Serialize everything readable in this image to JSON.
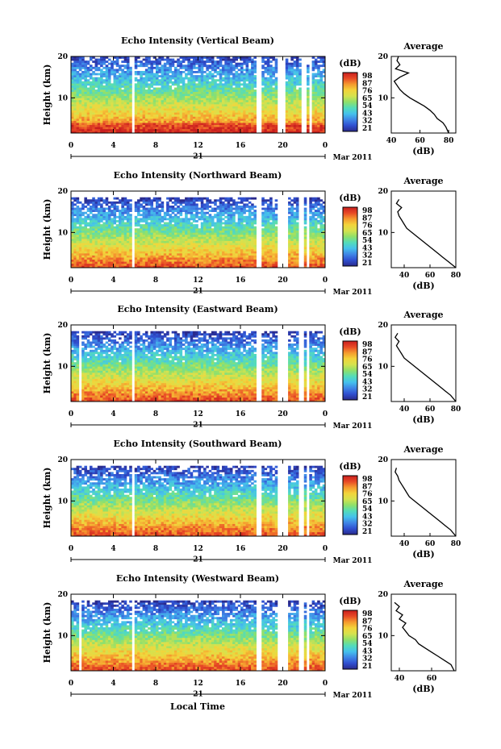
{
  "xlabel": "Local Time",
  "date_label": "Mar 2011",
  "day_label": "21",
  "colors": {
    "scale": [
      "#2a2a8c",
      "#2f4fd0",
      "#3f86e6",
      "#45c1ec",
      "#53dcb9",
      "#8fe06a",
      "#d5e24e",
      "#f3d43a",
      "#f59a2e",
      "#e84a26",
      "#c81e1e"
    ],
    "line": "#000000"
  },
  "chart_data": [
    {
      "type": "heatmap",
      "title": "Echo Intensity (Vertical Beam)",
      "ylabel": "Height (km)",
      "x_ticks": [
        "0",
        "4",
        "8",
        "12",
        "16",
        "20",
        "0"
      ],
      "y_ticks": [
        "20",
        "10"
      ],
      "xlim": [
        0,
        24
      ],
      "ylim": [
        1.5,
        20
      ],
      "top_km": 20,
      "gaps": [
        [
          5.8,
          6.1
        ],
        [
          17.6,
          18.0
        ],
        [
          19.6,
          20.2
        ],
        [
          21.8,
          22.2
        ],
        [
          22.5,
          22.8
        ]
      ],
      "colorbar": {
        "title": "(dB)",
        "ticks": [
          "98",
          "87",
          "76",
          "65",
          "54",
          "43",
          "32",
          "21"
        ]
      },
      "profile": {
        "title": "Average",
        "xlabel": "(dB)",
        "x_ticks": [
          "40",
          "60",
          "80"
        ],
        "xlim": [
          40,
          85
        ],
        "y_ticks": [
          "20",
          "10"
        ],
        "height": [
          1.5,
          3,
          4,
          5,
          6,
          7,
          8,
          9,
          10,
          11,
          12,
          13,
          14,
          15,
          16,
          17,
          18,
          19,
          20
        ],
        "value": [
          80,
          78,
          76,
          72,
          70,
          67,
          63,
          58,
          53,
          49,
          46,
          44,
          42,
          46,
          52,
          43,
          46,
          44,
          45
        ]
      }
    },
    {
      "type": "heatmap",
      "title": "Echo Intensity (Northward Beam)",
      "ylabel": "Height (km)",
      "x_ticks": [
        "0",
        "4",
        "8",
        "12",
        "16",
        "20",
        "0"
      ],
      "y_ticks": [
        "20",
        "10"
      ],
      "xlim": [
        0,
        24
      ],
      "ylim": [
        1.5,
        20
      ],
      "top_km": 18,
      "gaps": [
        [
          5.8,
          6.1
        ],
        [
          17.6,
          18.0
        ],
        [
          19.6,
          20.4
        ],
        [
          21.6,
          22.0
        ],
        [
          22.3,
          22.6
        ]
      ],
      "colorbar": {
        "title": "(dB)",
        "ticks": [
          "98",
          "87",
          "76",
          "65",
          "54",
          "43",
          "32",
          "21"
        ]
      },
      "profile": {
        "title": "Average",
        "xlabel": "(dB)",
        "x_ticks": [
          "40",
          "60",
          "80"
        ],
        "xlim": [
          30,
          80
        ],
        "y_ticks": [
          "20",
          "10"
        ],
        "height": [
          1.5,
          3,
          4,
          5,
          6,
          7,
          8,
          9,
          10,
          11,
          12,
          13,
          14,
          15,
          16,
          17,
          18
        ],
        "value": [
          80,
          74,
          70,
          66,
          62,
          58,
          54,
          50,
          46,
          42,
          40,
          38,
          36,
          35,
          38,
          34,
          36
        ]
      }
    },
    {
      "type": "heatmap",
      "title": "Echo Intensity (Eastward Beam)",
      "ylabel": "Height (km)",
      "x_ticks": [
        "0",
        "4",
        "8",
        "12",
        "16",
        "20",
        "0"
      ],
      "y_ticks": [
        "20",
        "10"
      ],
      "xlim": [
        0,
        24
      ],
      "ylim": [
        1.5,
        20
      ],
      "top_km": 18,
      "gaps": [
        [
          0.8,
          1.0
        ],
        [
          5.8,
          6.1
        ],
        [
          17.6,
          18.0
        ],
        [
          19.6,
          20.4
        ],
        [
          21.6,
          22.0
        ],
        [
          22.3,
          22.6
        ]
      ],
      "colorbar": {
        "title": "(dB)",
        "ticks": [
          "98",
          "87",
          "76",
          "65",
          "54",
          "43",
          "32",
          "21"
        ]
      },
      "profile": {
        "title": "Average",
        "xlabel": "(dB)",
        "x_ticks": [
          "40",
          "60",
          "80"
        ],
        "xlim": [
          30,
          80
        ],
        "y_ticks": [
          "20",
          "10"
        ],
        "height": [
          1.5,
          3,
          4,
          5,
          6,
          7,
          8,
          9,
          10,
          11,
          12,
          13,
          14,
          15,
          16,
          17,
          18
        ],
        "value": [
          80,
          76,
          72,
          68,
          64,
          60,
          56,
          52,
          48,
          44,
          40,
          38,
          36,
          34,
          36,
          33,
          35
        ]
      }
    },
    {
      "type": "heatmap",
      "title": "Echo Intensity (Southward Beam)",
      "ylabel": "Height (km)",
      "x_ticks": [
        "0",
        "4",
        "8",
        "12",
        "16",
        "20",
        "0"
      ],
      "y_ticks": [
        "20",
        "10"
      ],
      "xlim": [
        0,
        24
      ],
      "ylim": [
        1.5,
        20
      ],
      "top_km": 18,
      "gaps": [
        [
          5.8,
          6.1
        ],
        [
          17.6,
          18.0
        ],
        [
          19.6,
          20.4
        ],
        [
          21.6,
          22.0
        ],
        [
          22.3,
          22.6
        ]
      ],
      "colorbar": {
        "title": "(dB)",
        "ticks": [
          "98",
          "87",
          "76",
          "65",
          "54",
          "43",
          "32",
          "21"
        ]
      },
      "profile": {
        "title": "Average",
        "xlabel": "(dB)",
        "x_ticks": [
          "40",
          "60",
          "80"
        ],
        "xlim": [
          30,
          80
        ],
        "y_ticks": [
          "20",
          "10"
        ],
        "height": [
          1.5,
          3,
          4,
          5,
          6,
          7,
          8,
          9,
          10,
          11,
          12,
          13,
          14,
          15,
          16,
          17,
          18
        ],
        "value": [
          80,
          76,
          72,
          68,
          64,
          60,
          56,
          52,
          48,
          44,
          42,
          40,
          38,
          36,
          35,
          33,
          34
        ]
      }
    },
    {
      "type": "heatmap",
      "title": "Echo Intensity (Westward Beam)",
      "ylabel": "Height (km)",
      "x_ticks": [
        "0",
        "4",
        "8",
        "12",
        "16",
        "20",
        "0"
      ],
      "y_ticks": [
        "20",
        "10"
      ],
      "xlim": [
        0,
        24
      ],
      "ylim": [
        1.5,
        20
      ],
      "top_km": 18,
      "gaps": [
        [
          0.8,
          1.0
        ],
        [
          5.8,
          6.1
        ],
        [
          17.6,
          18.0
        ],
        [
          19.6,
          20.4
        ],
        [
          21.6,
          22.0
        ],
        [
          22.3,
          22.6
        ]
      ],
      "colorbar": {
        "title": "(dB)",
        "ticks": [
          "98",
          "87",
          "76",
          "65",
          "54",
          "43",
          "32",
          "21"
        ]
      },
      "profile": {
        "title": "Average",
        "xlabel": "(dB)",
        "x_ticks": [
          "40",
          "60"
        ],
        "xlim": [
          35,
          75
        ],
        "y_ticks": [
          "20",
          "10"
        ],
        "height": [
          1.5,
          3,
          4,
          5,
          6,
          7,
          8,
          9,
          10,
          11,
          12,
          13,
          14,
          15,
          16,
          17,
          18
        ],
        "value": [
          74,
          72,
          68,
          64,
          60,
          56,
          52,
          50,
          46,
          44,
          42,
          44,
          40,
          42,
          38,
          40,
          37
        ]
      }
    }
  ]
}
